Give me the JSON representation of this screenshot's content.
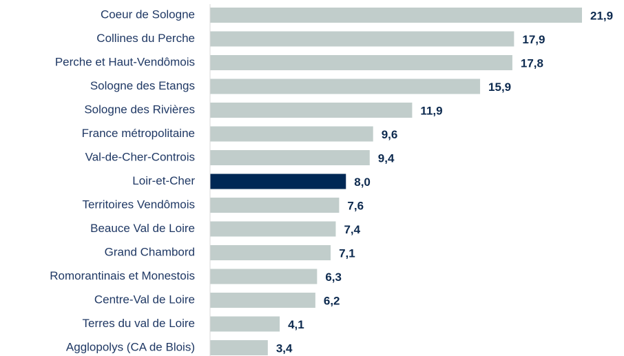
{
  "chart_data": {
    "type": "barh",
    "categories": [
      "Coeur de Sologne",
      "Collines du Perche",
      "Perche et Haut-Vendômois",
      "Sologne des Etangs",
      "Sologne des Rivières",
      "France métropolitaine",
      "Val-de-Cher-Controis",
      "Loir-et-Cher",
      "Territoires Vendômois",
      "Beauce Val de Loire",
      "Grand Chambord",
      "Romorantinais et Monestois",
      "Centre-Val de Loire",
      "Terres du val de Loire",
      "Agglopolys (CA de Blois)"
    ],
    "values": [
      21.9,
      17.9,
      17.8,
      15.9,
      11.9,
      9.6,
      9.4,
      8.0,
      7.6,
      7.4,
      7.1,
      6.3,
      6.2,
      4.1,
      3.4
    ],
    "value_labels": [
      "21,9",
      "17,9",
      "17,8",
      "15,9",
      "11,9",
      "9,6",
      "9,4",
      "8,0",
      "7,6",
      "7,4",
      "7,1",
      "6,3",
      "6,2",
      "4,1",
      "3,4"
    ],
    "colors": [
      "#c1cdcb",
      "#c1cdcb",
      "#c1cdcb",
      "#c1cdcb",
      "#c1cdcb",
      "#c1cdcb",
      "#c1cdcb",
      "#002855",
      "#c1cdcb",
      "#c1cdcb",
      "#c1cdcb",
      "#c1cdcb",
      "#c1cdcb",
      "#c1cdcb",
      "#c1cdcb"
    ]
  }
}
